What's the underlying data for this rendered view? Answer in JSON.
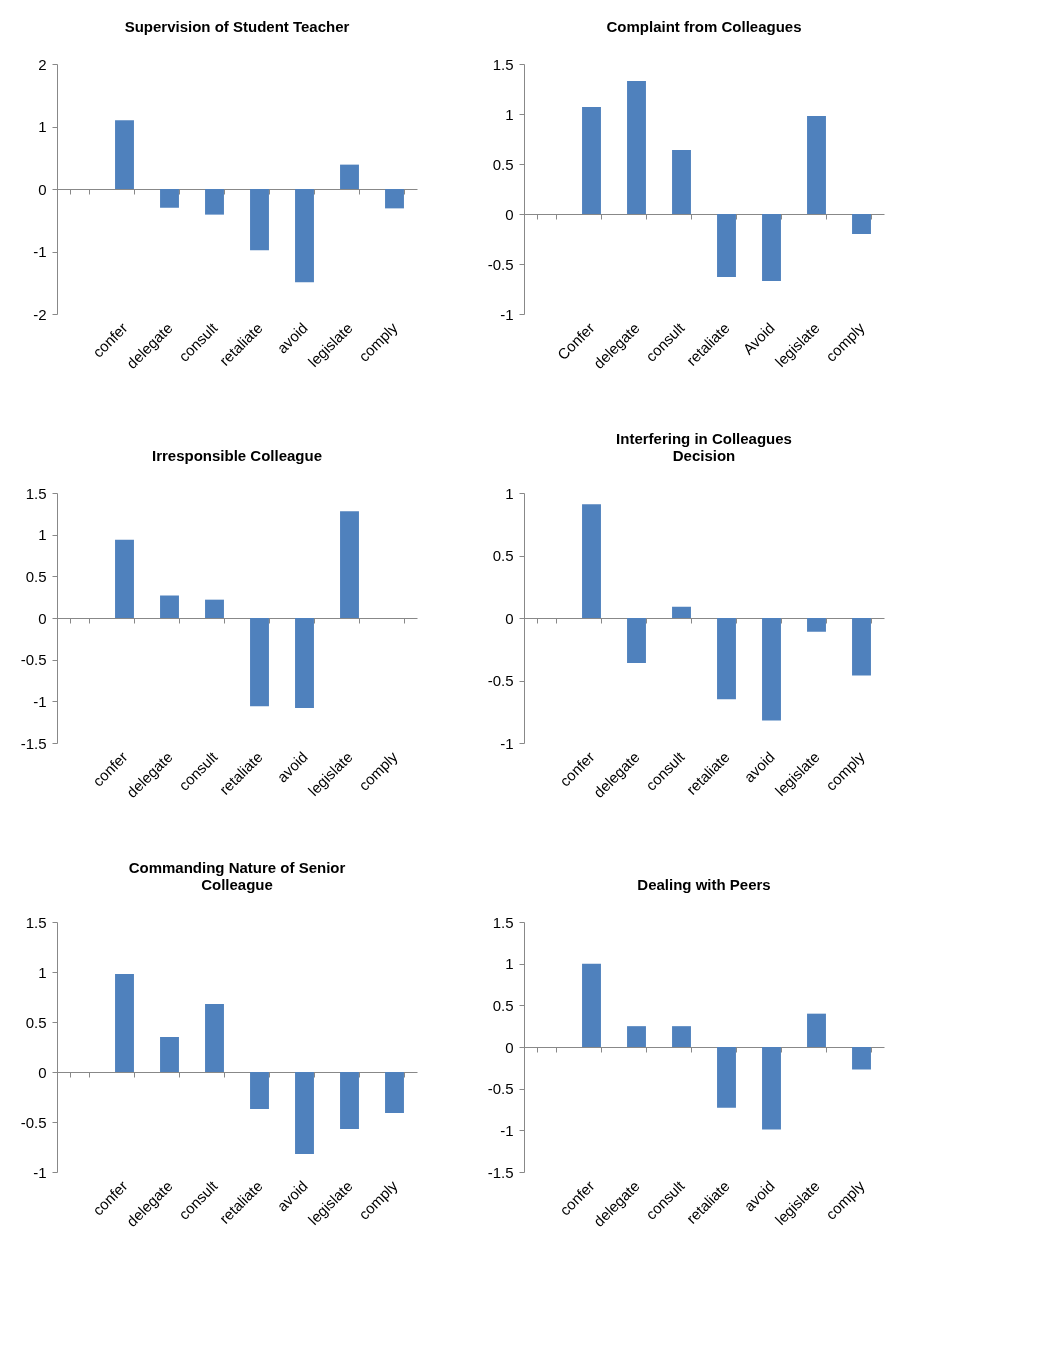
{
  "chart_data": [
    {
      "type": "bar",
      "title": "Supervision of Student Teacher",
      "categories": [
        null,
        "confer",
        "delegate",
        "consult",
        "retaliate",
        "avoid",
        "legislate",
        "comply"
      ],
      "values": [
        null,
        1.1,
        -0.3,
        -0.41,
        -0.98,
        -1.49,
        0.39,
        -0.31
      ],
      "color": "#4f81bd",
      "ylim": [
        -2,
        2
      ],
      "yticks": [
        -2,
        -1,
        0,
        1,
        2
      ]
    },
    {
      "type": "bar",
      "title": "Complaint from Colleagues",
      "categories": [
        null,
        "Confer",
        "delegate",
        "consult",
        "retaliate",
        "Avoid",
        "legislate",
        "comply"
      ],
      "values": [
        null,
        1.07,
        1.33,
        0.64,
        -0.63,
        -0.67,
        0.98,
        -0.2
      ],
      "color": "#4f81bd",
      "ylim": [
        -1,
        1.5
      ],
      "yticks": [
        -1,
        -0.5,
        0,
        0.5,
        1,
        1.5
      ]
    },
    {
      "type": "bar",
      "title": "Irresponsible Colleague",
      "categories": [
        null,
        "confer",
        "delegate",
        "consult",
        "retaliate",
        "avoid",
        "legislate",
        "comply"
      ],
      "values": [
        null,
        0.94,
        0.27,
        0.22,
        -1.06,
        -1.08,
        1.28,
        0
      ],
      "color": "#4f81bd",
      "ylim": [
        -1.5,
        1.5
      ],
      "yticks": [
        -1.5,
        -1,
        -0.5,
        0,
        0.5,
        1,
        1.5
      ]
    },
    {
      "type": "bar",
      "title": "Interfering in Colleagues Decision",
      "categories": [
        null,
        "confer",
        "delegate",
        "consult",
        "retaliate",
        "avoid",
        "legislate",
        "comply"
      ],
      "values": [
        null,
        0.91,
        -0.36,
        0.09,
        -0.65,
        -0.82,
        -0.11,
        -0.46
      ],
      "color": "#4f81bd",
      "ylim": [
        -1,
        1
      ],
      "yticks": [
        -1,
        -0.5,
        0,
        0.5,
        1
      ]
    },
    {
      "type": "bar",
      "title": "Commanding Nature of Senior Colleague",
      "categories": [
        null,
        "confer",
        "delegate",
        "consult",
        "retaliate",
        "avoid",
        "legislate",
        "comply"
      ],
      "values": [
        null,
        0.98,
        0.35,
        0.68,
        -0.37,
        -0.82,
        -0.57,
        -0.41
      ],
      "color": "#4f81bd",
      "ylim": [
        -1,
        1.5
      ],
      "yticks": [
        -1,
        -0.5,
        0,
        0.5,
        1,
        1.5
      ]
    },
    {
      "type": "bar",
      "title": "Dealing with Peers",
      "categories": [
        null,
        "confer",
        "delegate",
        "consult",
        "retaliate",
        "avoid",
        "legislate",
        "comply"
      ],
      "values": [
        null,
        1.0,
        0.25,
        0.25,
        -0.73,
        -0.99,
        0.4,
        -0.27
      ],
      "color": "#4f81bd",
      "ylim": [
        -1.5,
        1.5
      ],
      "yticks": [
        -1.5,
        -1,
        -0.5,
        0,
        0.5,
        1,
        1.5
      ]
    }
  ]
}
